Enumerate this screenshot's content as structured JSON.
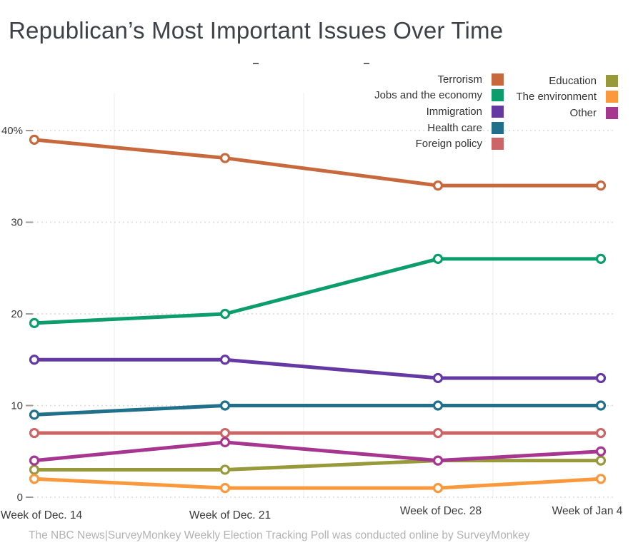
{
  "title": "Republican’s Most Important Issues Over Time",
  "footer": "The NBC News|SurveyMonkey Weekly Election Tracking Poll was conducted online by SurveyMonkey",
  "chart_data": {
    "type": "line",
    "categories": [
      "Week of Dec. 14",
      "Week of Dec. 21",
      "Week of Dec. 28",
      "Week of Jan 4"
    ],
    "y_ticks": [
      0,
      10,
      20,
      30,
      40
    ],
    "y_tick_labels": [
      "0",
      "10",
      "20",
      "30",
      "40%"
    ],
    "ylim": [
      0,
      42
    ],
    "grid": true,
    "legend_position": "top-right",
    "series": [
      {
        "name": "Terrorism",
        "color": "#c7693c",
        "values": [
          39,
          37,
          34,
          34
        ]
      },
      {
        "name": "Jobs and the economy",
        "color": "#0b9d6b",
        "values": [
          19,
          20,
          26,
          26
        ]
      },
      {
        "name": "Immigration",
        "color": "#6539a3",
        "values": [
          15,
          15,
          13,
          13
        ]
      },
      {
        "name": "Health care",
        "color": "#21708b",
        "values": [
          9,
          10,
          10,
          10
        ]
      },
      {
        "name": "Foreign policy",
        "color": "#cb6566",
        "values": [
          7,
          7,
          7,
          7
        ]
      },
      {
        "name": "Education",
        "color": "#97993b",
        "values": [
          3,
          3,
          4,
          4
        ]
      },
      {
        "name": "The environment",
        "color": "#fb983b",
        "values": [
          2,
          1,
          1,
          2
        ]
      },
      {
        "name": "Other",
        "color": "#a73691",
        "values": [
          4,
          6,
          4,
          5
        ]
      }
    ],
    "legend_columns": [
      [
        "Terrorism",
        "Jobs and the economy",
        "Immigration",
        "Health care",
        "Foreign policy"
      ],
      [
        "Education",
        "The environment",
        "Other"
      ]
    ]
  }
}
